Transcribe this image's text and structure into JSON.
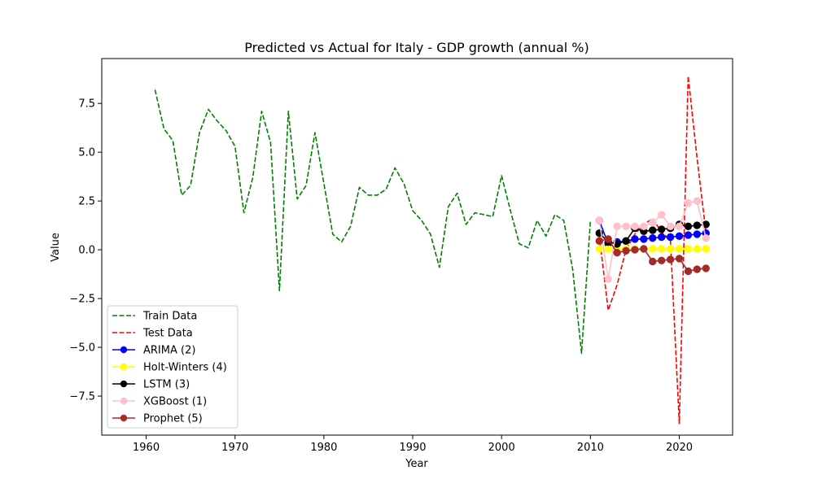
{
  "chart_data": {
    "type": "line",
    "title": "Predicted vs Actual for Italy - GDP growth (annual %)",
    "xlabel": "Year",
    "ylabel": "Value",
    "xlim": [
      1955,
      2026
    ],
    "ylim": [
      -9.5,
      9.8
    ],
    "xticks": [
      1960,
      1970,
      1980,
      1990,
      2000,
      2010,
      2020
    ],
    "yticks": [
      -7.5,
      -5.0,
      -2.5,
      0.0,
      2.5,
      5.0,
      7.5
    ],
    "xtick_labels": [
      "1960",
      "1970",
      "1980",
      "1990",
      "2000",
      "2010",
      "2020"
    ],
    "ytick_labels": [
      "−7.5",
      "−5.0",
      "−2.5",
      "0.0",
      "2.5",
      "5.0",
      "7.5"
    ],
    "grid": false,
    "legend_position": "lower-left",
    "series": [
      {
        "name": "Train Data",
        "color": "#008000",
        "style": "dashed",
        "marker": false,
        "x": [
          1961,
          1962,
          1963,
          1964,
          1965,
          1966,
          1967,
          1968,
          1969,
          1970,
          1971,
          1972,
          1973,
          1974,
          1975,
          1976,
          1977,
          1978,
          1979,
          1980,
          1981,
          1982,
          1983,
          1984,
          1985,
          1986,
          1987,
          1988,
          1989,
          1990,
          1991,
          1992,
          1993,
          1994,
          1995,
          1996,
          1997,
          1998,
          1999,
          2000,
          2001,
          2002,
          2003,
          2004,
          2005,
          2006,
          2007,
          2008,
          2009,
          2010
        ],
        "y": [
          8.2,
          6.2,
          5.6,
          2.8,
          3.3,
          6.0,
          7.2,
          6.6,
          6.1,
          5.3,
          1.9,
          3.7,
          7.1,
          5.5,
          -2.1,
          7.1,
          2.6,
          3.3,
          6.0,
          3.4,
          0.8,
          0.4,
          1.2,
          3.2,
          2.8,
          2.8,
          3.1,
          4.2,
          3.4,
          2.0,
          1.5,
          0.8,
          -0.9,
          2.2,
          2.9,
          1.3,
          1.9,
          1.8,
          1.7,
          3.8,
          2.0,
          0.3,
          0.1,
          1.5,
          0.7,
          1.8,
          1.5,
          -1.0,
          -5.3,
          1.5
        ]
      },
      {
        "name": "Test Data",
        "color": "#ff0000",
        "style": "dashed",
        "marker": false,
        "x": [
          2011,
          2012,
          2013,
          2014,
          2015,
          2016,
          2017,
          2018,
          2019,
          2020,
          2021,
          2022,
          2023
        ],
        "y": [
          0.7,
          -3.1,
          -1.8,
          0.0,
          0.8,
          1.3,
          1.6,
          0.9,
          0.5,
          -8.9,
          8.9,
          4.7,
          0.9
        ]
      },
      {
        "name": "ARIMA (2)",
        "color": "#0000ff",
        "style": "solid",
        "marker": true,
        "x": [
          2011,
          2012,
          2013,
          2014,
          2015,
          2016,
          2017,
          2018,
          2019,
          2020,
          2021,
          2022,
          2023
        ],
        "y": [
          1.5,
          0.3,
          0.4,
          0.45,
          0.55,
          0.55,
          0.6,
          0.65,
          0.65,
          0.7,
          0.75,
          0.8,
          0.85
        ]
      },
      {
        "name": "Holt-Winters (4)",
        "color": "#ffff00",
        "style": "solid",
        "marker": true,
        "x": [
          2011,
          2012,
          2013,
          2014,
          2015,
          2016,
          2017,
          2018,
          2019,
          2020,
          2021,
          2022,
          2023
        ],
        "y": [
          0.05,
          0.05,
          0.05,
          0.05,
          0.05,
          0.05,
          0.05,
          0.05,
          0.05,
          0.05,
          0.05,
          0.05,
          0.05
        ]
      },
      {
        "name": "LSTM (3)",
        "color": "#000000",
        "style": "solid",
        "marker": true,
        "x": [
          2011,
          2012,
          2013,
          2014,
          2015,
          2016,
          2017,
          2018,
          2019,
          2020,
          2021,
          2022,
          2023
        ],
        "y": [
          0.85,
          0.4,
          0.3,
          0.45,
          1.1,
          0.95,
          1.0,
          1.05,
          1.1,
          1.3,
          1.2,
          1.25,
          1.3
        ]
      },
      {
        "name": "XGBoost (1)",
        "color": "#ffc0cb",
        "style": "solid",
        "marker": true,
        "x": [
          2011,
          2012,
          2013,
          2014,
          2015,
          2016,
          2017,
          2018,
          2019,
          2020,
          2021,
          2022,
          2023
        ],
        "y": [
          1.5,
          -1.5,
          1.2,
          1.2,
          1.2,
          1.2,
          1.4,
          1.8,
          1.2,
          1.2,
          2.4,
          2.5,
          0.6
        ]
      },
      {
        "name": "Prophet (5)",
        "color": "#a52a2a",
        "style": "solid",
        "marker": true,
        "x": [
          2011,
          2012,
          2013,
          2014,
          2015,
          2016,
          2017,
          2018,
          2019,
          2020,
          2021,
          2022,
          2023
        ],
        "y": [
          0.45,
          0.55,
          -0.15,
          -0.05,
          0.0,
          0.05,
          -0.6,
          -0.55,
          -0.5,
          -0.45,
          -1.1,
          -1.0,
          -0.95
        ]
      }
    ]
  }
}
